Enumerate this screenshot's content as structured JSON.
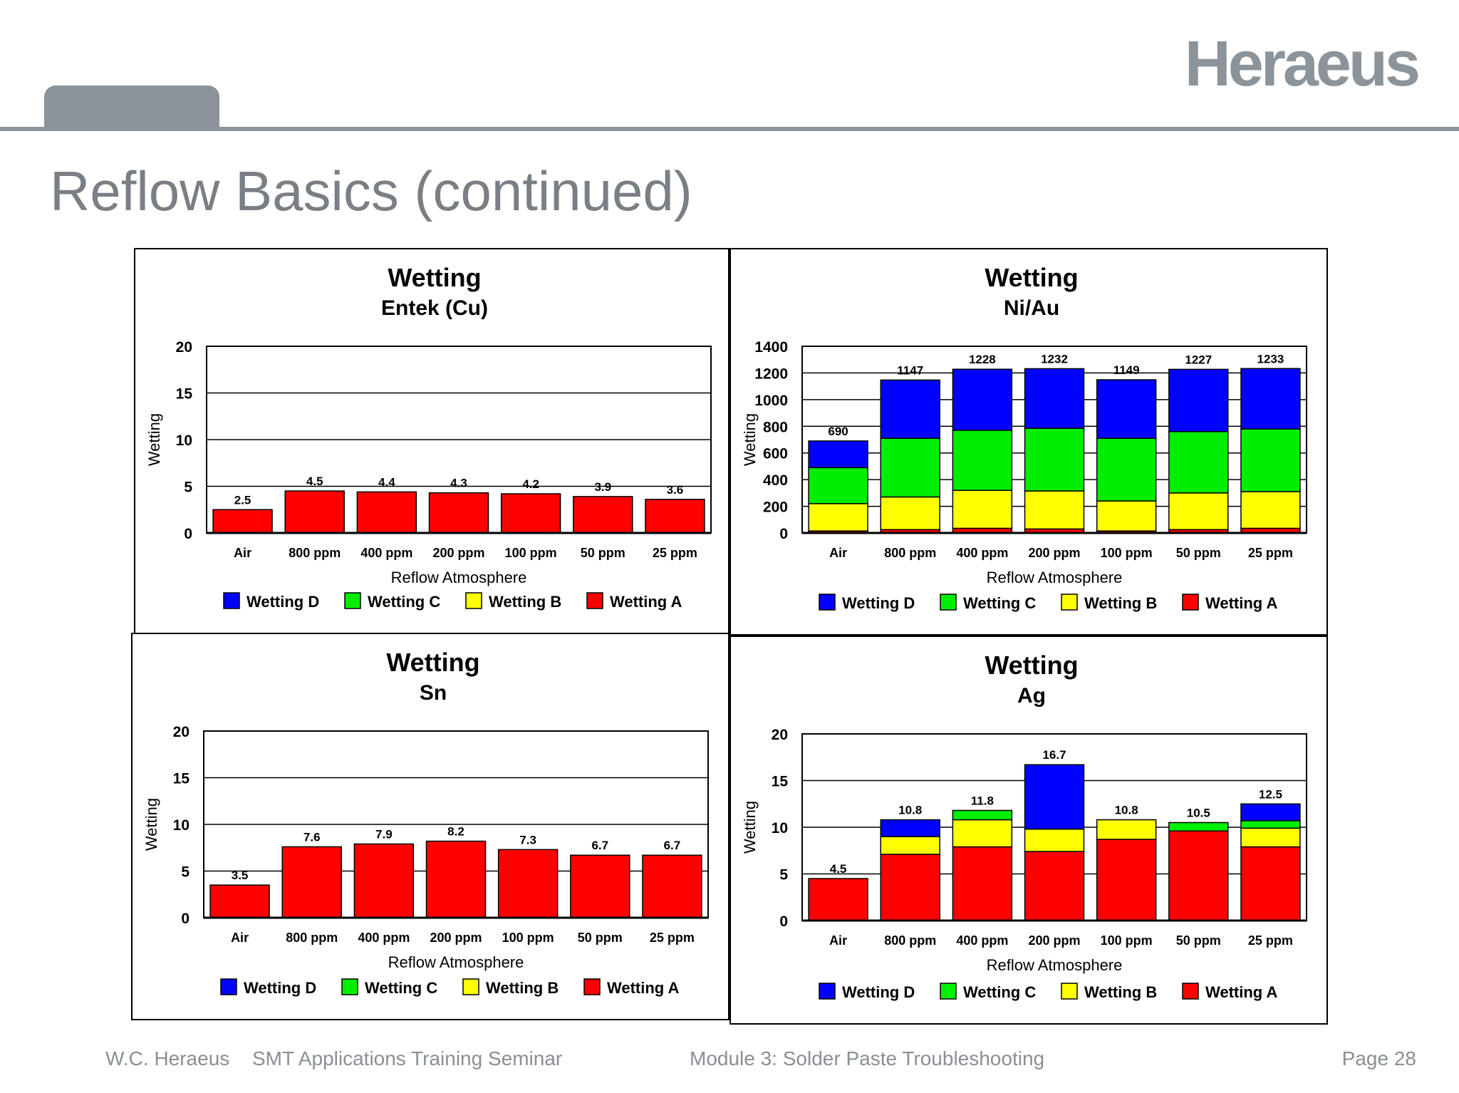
{
  "brand": {
    "logo_text": "Heraeus"
  },
  "slide": {
    "title": "Reflow Basics (continued)"
  },
  "footer": {
    "company": "W.C. Heraeus",
    "seminar": "SMT Applications Training Seminar",
    "module": "Module 3: Solder Paste Troubleshooting",
    "page": "Page 28"
  },
  "colors": {
    "Wetting D": "#0000ff",
    "Wetting C": "#00ee00",
    "Wetting B": "#ffff00",
    "Wetting A": "#ff0000"
  },
  "chart_data": [
    {
      "type": "bar",
      "stacked": true,
      "title": "Wetting",
      "subtitle": "Entek (Cu)",
      "xlabel": "Reflow Atmosphere",
      "ylabel": "Wetting",
      "ylim": [
        0,
        20
      ],
      "yticks": [
        0,
        5,
        10,
        15,
        20
      ],
      "categories": [
        "Air",
        "800 ppm",
        "400 ppm",
        "200 ppm",
        "100 ppm",
        "50 ppm",
        "25 ppm"
      ],
      "legend": [
        "Wetting D",
        "Wetting C",
        "Wetting B",
        "Wetting A"
      ],
      "legend_position": "bottom",
      "series": [
        {
          "name": "Wetting A",
          "values": [
            2.5,
            4.5,
            4.4,
            4.3,
            4.2,
            3.9,
            3.6
          ]
        },
        {
          "name": "Wetting B",
          "values": [
            0,
            0,
            0,
            0,
            0,
            0,
            0
          ]
        },
        {
          "name": "Wetting C",
          "values": [
            0,
            0,
            0,
            0,
            0,
            0,
            0
          ]
        },
        {
          "name": "Wetting D",
          "values": [
            0,
            0,
            0,
            0,
            0,
            0,
            0
          ]
        }
      ],
      "totals": [
        2.5,
        4.5,
        4.4,
        4.3,
        4.2,
        3.9,
        3.6
      ],
      "total_labels": [
        "2.5",
        "4.5",
        "4.4",
        "4.3",
        "4.2",
        "3.9",
        "3.6"
      ]
    },
    {
      "type": "bar",
      "stacked": true,
      "title": "Wetting",
      "subtitle": "Ni/Au",
      "xlabel": "Reflow Atmosphere",
      "ylabel": "Wetting",
      "ylim": [
        0,
        1400
      ],
      "yticks": [
        0,
        200,
        400,
        600,
        800,
        1000,
        1200,
        1400
      ],
      "categories": [
        "Air",
        "800 ppm",
        "400 ppm",
        "200 ppm",
        "100 ppm",
        "50 ppm",
        "25 ppm"
      ],
      "legend": [
        "Wetting D",
        "Wetting C",
        "Wetting B",
        "Wetting A"
      ],
      "legend_position": "bottom",
      "series": [
        {
          "name": "Wetting A",
          "values": [
            15,
            25,
            35,
            30,
            15,
            25,
            35
          ]
        },
        {
          "name": "Wetting B",
          "values": [
            205,
            245,
            285,
            285,
            225,
            275,
            275
          ]
        },
        {
          "name": "Wetting C",
          "values": [
            270,
            440,
            450,
            470,
            470,
            460,
            470
          ]
        },
        {
          "name": "Wetting D",
          "values": [
            200,
            437,
            458,
            447,
            439,
            467,
            453
          ]
        }
      ],
      "totals": [
        690,
        1147,
        1228,
        1232,
        1149,
        1227,
        1233
      ],
      "total_labels": [
        "690",
        "1147",
        "1228",
        "1232",
        "1149",
        "1227",
        "1233"
      ]
    },
    {
      "type": "bar",
      "stacked": true,
      "title": "Wetting",
      "subtitle": "Sn",
      "xlabel": "Reflow Atmosphere",
      "ylabel": "Wetting",
      "ylim": [
        0,
        20
      ],
      "yticks": [
        0,
        5,
        10,
        15,
        20
      ],
      "categories": [
        "Air",
        "800 ppm",
        "400 ppm",
        "200 ppm",
        "100 ppm",
        "50 ppm",
        "25 ppm"
      ],
      "legend": [
        "Wetting D",
        "Wetting C",
        "Wetting B",
        "Wetting A"
      ],
      "legend_position": "bottom",
      "series": [
        {
          "name": "Wetting A",
          "values": [
            3.5,
            7.6,
            7.9,
            8.2,
            7.3,
            6.7,
            6.7
          ]
        },
        {
          "name": "Wetting B",
          "values": [
            0,
            0,
            0,
            0,
            0,
            0,
            0
          ]
        },
        {
          "name": "Wetting C",
          "values": [
            0,
            0,
            0,
            0,
            0,
            0,
            0
          ]
        },
        {
          "name": "Wetting D",
          "values": [
            0,
            0,
            0,
            0,
            0,
            0,
            0
          ]
        }
      ],
      "totals": [
        3.5,
        7.6,
        7.9,
        8.2,
        7.3,
        6.7,
        6.7
      ],
      "total_labels": [
        "3.5",
        "7.6",
        "7.9",
        "8.2",
        "7.3",
        "6.7",
        "6.7"
      ]
    },
    {
      "type": "bar",
      "stacked": true,
      "title": "Wetting",
      "subtitle": "Ag",
      "xlabel": "Reflow Atmosphere",
      "ylabel": "Wetting",
      "ylim": [
        0,
        20
      ],
      "yticks": [
        0,
        5,
        10,
        15,
        20
      ],
      "categories": [
        "Air",
        "800 ppm",
        "400 ppm",
        "200 ppm",
        "100 ppm",
        "50 ppm",
        "25 ppm"
      ],
      "legend": [
        "Wetting D",
        "Wetting C",
        "Wetting B",
        "Wetting A"
      ],
      "legend_position": "bottom",
      "series": [
        {
          "name": "Wetting A",
          "values": [
            4.5,
            7.1,
            7.9,
            7.4,
            8.7,
            9.6,
            7.9
          ]
        },
        {
          "name": "Wetting B",
          "values": [
            0,
            1.9,
            2.9,
            2.4,
            2.1,
            0,
            2.0
          ]
        },
        {
          "name": "Wetting C",
          "values": [
            0,
            0,
            1.0,
            0,
            0,
            0.9,
            0.8
          ]
        },
        {
          "name": "Wetting D",
          "values": [
            0,
            1.8,
            0,
            6.9,
            0,
            0,
            1.8
          ]
        }
      ],
      "totals": [
        4.5,
        10.8,
        11.8,
        16.7,
        10.8,
        10.5,
        12.5
      ],
      "total_labels": [
        "4.5",
        "10.8",
        "11.8",
        "16.7",
        "10.8",
        "10.5",
        "12.5"
      ]
    }
  ]
}
